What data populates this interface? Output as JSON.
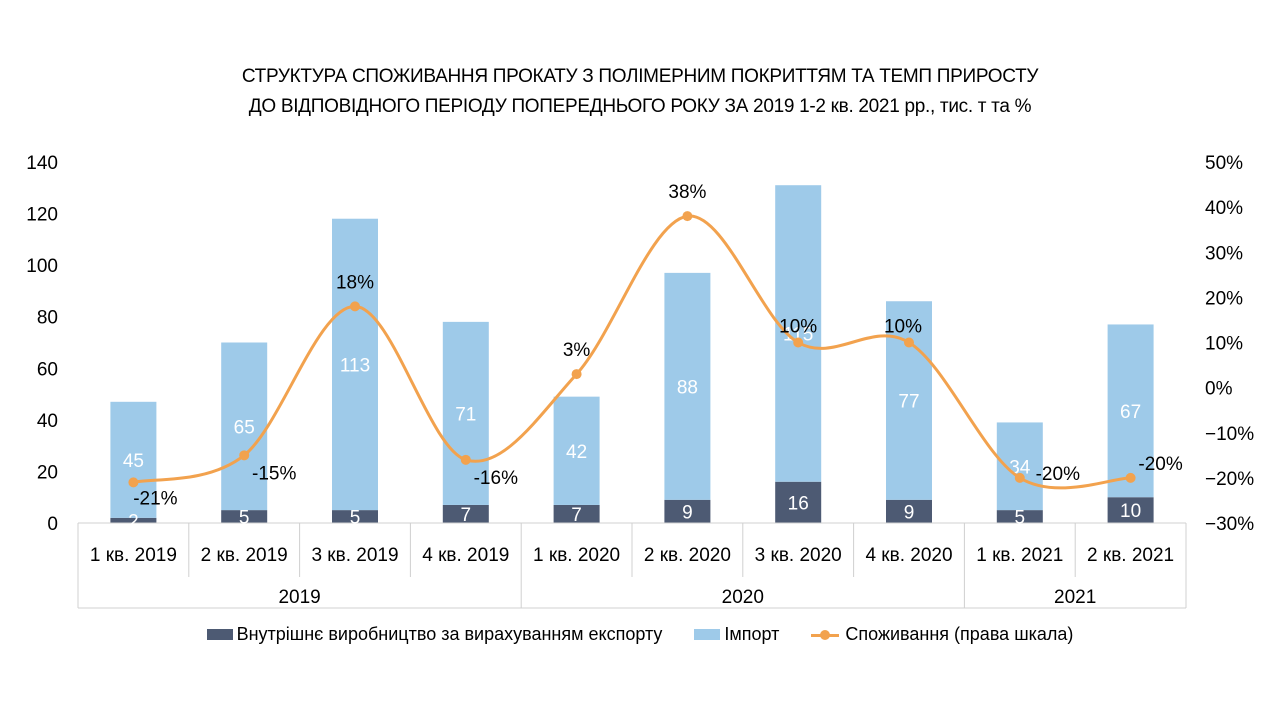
{
  "title_lines": [
    "СТРУКТУРА СПОЖИВАННЯ ПРОКАТУ З ПОЛІМЕРНИМ ПОКРИТТЯМ ТА ТЕМП ПРИРОСТУ",
    "ДО ВІДПОВІДНОГО ПЕРІОДУ ПОПЕРЕДНЬОГО РОКУ ЗА 2019 1-2 кв. 2021 рр., тис. т та %"
  ],
  "colors": {
    "domestic": "#4d5a73",
    "import": "#9ecae9",
    "consumption": "#f2a24e",
    "axis": "#d0d0d0"
  },
  "chart_data": {
    "type": "bar",
    "stacked": true,
    "combo_line": true,
    "categories": [
      "1 кв. 2019",
      "2 кв. 2019",
      "3 кв. 2019",
      "4 кв. 2019",
      "1 кв. 2020",
      "2 кв. 2020",
      "3 кв. 2020",
      "4 кв. 2020",
      "1 кв. 2021",
      "2 кв. 2021"
    ],
    "groups": [
      {
        "label": "2019",
        "count": 4
      },
      {
        "label": "2020",
        "count": 4
      },
      {
        "label": "2021",
        "count": 2
      }
    ],
    "series": [
      {
        "name": "Внутрішнє виробництво за вирахуванням експорту",
        "kind": "bar",
        "axis": "left",
        "values": [
          2,
          5,
          5,
          7,
          7,
          9,
          16,
          9,
          5,
          10
        ]
      },
      {
        "name": "Імпорт",
        "kind": "bar",
        "axis": "left",
        "values": [
          45,
          65,
          113,
          71,
          42,
          88,
          115,
          77,
          34,
          67
        ]
      },
      {
        "name": "Споживання (права шкала)",
        "kind": "line",
        "axis": "right",
        "values": [
          -21,
          -15,
          18,
          -16,
          3,
          38,
          10,
          10,
          -20,
          -20
        ],
        "labels": [
          "-21%",
          "-15%",
          "18%",
          "-16%",
          "3%",
          "38%",
          "10%",
          "10%",
          "-20%",
          "-20%"
        ]
      }
    ],
    "y_left": {
      "min": 0,
      "max": 140,
      "ticks": [
        "0",
        "20",
        "40",
        "60",
        "80",
        "100",
        "120",
        "140"
      ]
    },
    "y_right": {
      "min": -30,
      "max": 50,
      "ticks": [
        "−30%",
        "−20%",
        "−10%",
        "0%",
        "10%",
        "20%",
        "30%",
        "40%",
        "50%"
      ]
    },
    "grid": false,
    "legend_position": "bottom"
  }
}
